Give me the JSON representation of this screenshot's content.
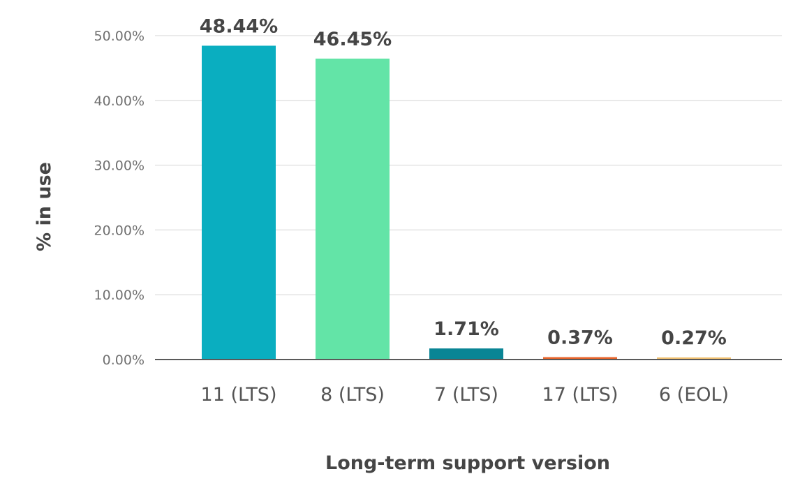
{
  "chart_data": {
    "type": "bar",
    "title": "",
    "xlabel": "Long-term support version",
    "ylabel": "% in use",
    "categories": [
      "11 (LTS)",
      "8 (LTS)",
      "7 (LTS)",
      "17 (LTS)",
      "6 (EOL)"
    ],
    "values": [
      48.44,
      46.45,
      1.71,
      0.37,
      0.27
    ],
    "value_labels": [
      "48.44%",
      "46.45%",
      "1.71%",
      "0.37%",
      "0.27%"
    ],
    "bar_colors": [
      "#0aaec0",
      "#63e4a7",
      "#0a8595",
      "#e8632a",
      "#f0c070"
    ],
    "ylim": [
      0,
      50
    ],
    "yticks": [
      0,
      10,
      20,
      30,
      40,
      50
    ],
    "ytick_labels": [
      "0.00%",
      "10.00%",
      "20.00%",
      "30.00%",
      "40.00%",
      "50.00%"
    ],
    "grid": true,
    "legend": "none"
  }
}
